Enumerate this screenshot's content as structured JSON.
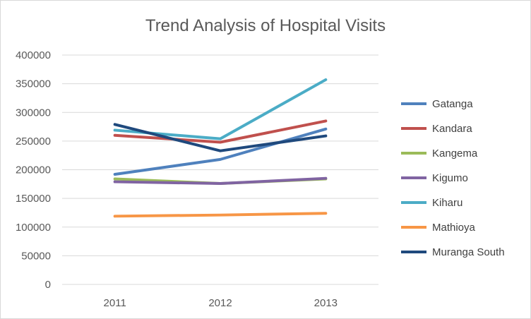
{
  "chart_data": {
    "type": "line",
    "title": "Trend Analysis of Hospital Visits",
    "xlabel": "",
    "ylabel": "",
    "categories": [
      "2011",
      "2012",
      "2013"
    ],
    "ylim": [
      0,
      400000
    ],
    "yticks": [
      0,
      50000,
      100000,
      150000,
      200000,
      250000,
      300000,
      350000,
      400000
    ],
    "ytick_labels": [
      "0",
      "50000",
      "100000",
      "150000",
      "200000",
      "250000",
      "300000",
      "350000",
      "400000"
    ],
    "grid": "horizontal",
    "legend": "right",
    "series": [
      {
        "name": "Gatanga",
        "color": "#4F81BD",
        "values": [
          192000,
          218000,
          271000
        ]
      },
      {
        "name": "Kandara",
        "color": "#C0504D",
        "values": [
          260000,
          248000,
          285000
        ]
      },
      {
        "name": "Kangema",
        "color": "#9BBB59",
        "values": [
          184000,
          176000,
          184000
        ]
      },
      {
        "name": "Kigumo",
        "color": "#8064A2",
        "values": [
          179000,
          176000,
          185000
        ]
      },
      {
        "name": "Kiharu",
        "color": "#4BACC6",
        "values": [
          269000,
          254000,
          357000
        ]
      },
      {
        "name": "Mathioya",
        "color": "#F79646",
        "values": [
          119000,
          121000,
          124000
        ]
      },
      {
        "name": "Muranga South",
        "color": "#1F497D",
        "values": [
          279000,
          233000,
          259000
        ]
      }
    ]
  }
}
